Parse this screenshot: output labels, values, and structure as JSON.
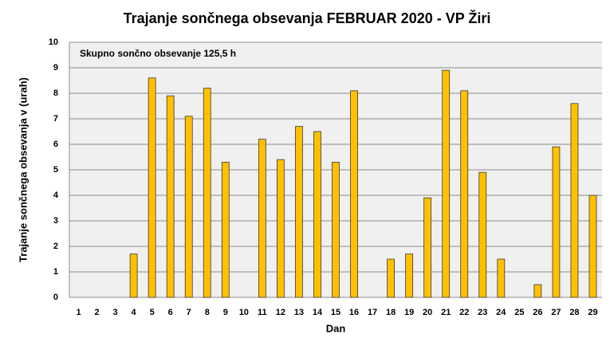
{
  "chart_data": {
    "type": "bar",
    "title": "Trajanje  sončnega obsevanja  FEBRUAR 2020 - VP Žiri",
    "annotation": "Skupno sončno obsevanje 125,5 h",
    "x_label": "Dan",
    "y_label": "Trajanje  sončnega obsevanja  v (urah)",
    "categories": [
      "1",
      "2",
      "3",
      "4",
      "5",
      "6",
      "7",
      "8",
      "9",
      "10",
      "11",
      "12",
      "13",
      "14",
      "15",
      "16",
      "17",
      "18",
      "19",
      "20",
      "21",
      "22",
      "23",
      "24",
      "25",
      "26",
      "27",
      "28",
      "29"
    ],
    "values": [
      0,
      0,
      0,
      1.7,
      8.6,
      7.9,
      7.1,
      8.2,
      5.3,
      0,
      6.2,
      5.4,
      6.7,
      6.5,
      5.3,
      8.1,
      0,
      1.5,
      1.7,
      3.9,
      8.9,
      8.1,
      4.9,
      1.5,
      0,
      0.5,
      5.9,
      7.6,
      4.0
    ],
    "color": "#ffc000",
    "ylim": [
      0,
      10
    ],
    "yticks": [
      0,
      1,
      2,
      3,
      4,
      5,
      6,
      7,
      8,
      9,
      10
    ],
    "grid": true
  }
}
